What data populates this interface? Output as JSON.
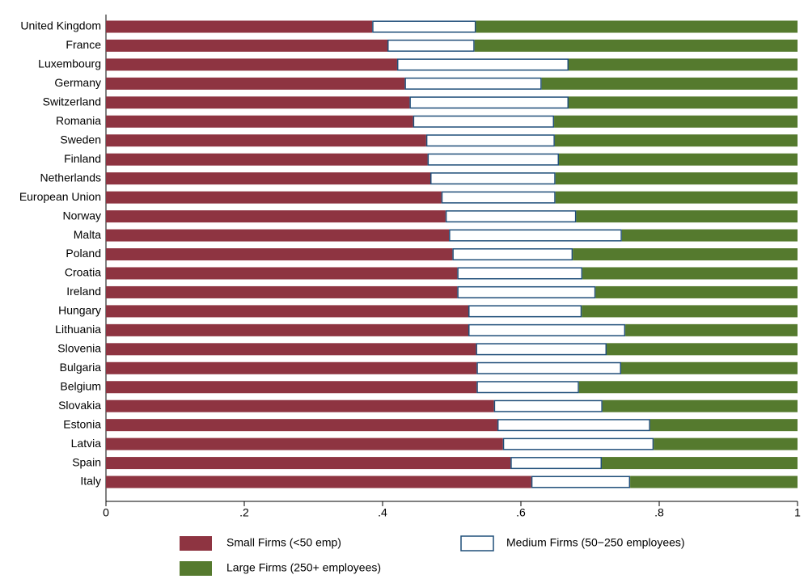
{
  "chart_data": {
    "type": "stacked-barh",
    "categories": [
      "United Kingdom",
      "France",
      "Luxembourg",
      "Germany",
      "Switzerland",
      "Romania",
      "Sweden",
      "Finland",
      "Netherlands",
      "European Union",
      "Norway",
      "Malta",
      "Poland",
      "Croatia",
      "Ireland",
      "Hungary",
      "Lithuania",
      "Slovenia",
      "Bulgaria",
      "Belgium",
      "Slovakia",
      "Estonia",
      "Latvia",
      "Spain",
      "Italy"
    ],
    "series": [
      {
        "name": "Small Firms (<50 emp)",
        "color": "#8e3441",
        "values": [
          0.385,
          0.407,
          0.421,
          0.432,
          0.439,
          0.444,
          0.463,
          0.465,
          0.469,
          0.485,
          0.491,
          0.496,
          0.501,
          0.508,
          0.508,
          0.524,
          0.524,
          0.535,
          0.536,
          0.536,
          0.561,
          0.566,
          0.574,
          0.585,
          0.615
        ]
      },
      {
        "name": "Medium Firms (50−250 employees)",
        "color": "#ffffff",
        "values": [
          0.15,
          0.126,
          0.248,
          0.198,
          0.23,
          0.204,
          0.186,
          0.19,
          0.181,
          0.165,
          0.189,
          0.25,
          0.174,
          0.181,
          0.2,
          0.164,
          0.227,
          0.189,
          0.209,
          0.148,
          0.157,
          0.221,
          0.218,
          0.132,
          0.143
        ]
      },
      {
        "name": "Large Firms (250+ employees)",
        "color": "#557a2e",
        "values": [
          0.465,
          0.467,
          0.331,
          0.37,
          0.331,
          0.352,
          0.351,
          0.345,
          0.35,
          0.35,
          0.32,
          0.254,
          0.325,
          0.311,
          0.292,
          0.312,
          0.249,
          0.276,
          0.255,
          0.316,
          0.282,
          0.213,
          0.208,
          0.283,
          0.242
        ]
      }
    ],
    "medium_outline": "#1f4e79",
    "xlim": [
      0,
      1
    ],
    "xticks": [
      0,
      {
        "value": 0.2,
        "label": ".2"
      },
      {
        "value": 0.4,
        "label": ".4"
      },
      {
        "value": 0.6,
        "label": ".6"
      },
      {
        "value": 0.8,
        "label": ".8"
      },
      1
    ]
  }
}
